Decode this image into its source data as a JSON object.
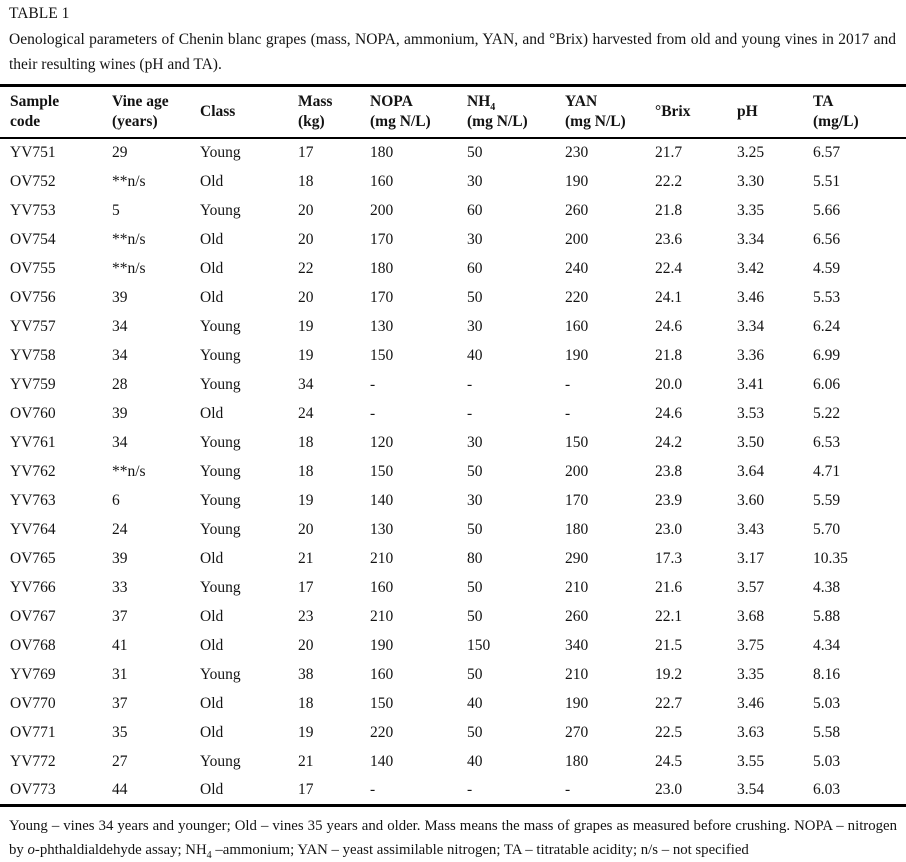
{
  "table_label": "TABLE 1",
  "caption": "Oenological parameters of Chenin blanc grapes (mass, NOPA, ammonium, YAN, and °Brix) harvested from old and young vines in 2017 and their resulting wines (pH and TA).",
  "table": {
    "columns": [
      {
        "line1": "Sample",
        "line2": "code"
      },
      {
        "line1": "Vine age",
        "line2": "(years)"
      },
      {
        "line1": "Class",
        "line2": ""
      },
      {
        "line1": "Mass",
        "line2": "(kg)"
      },
      {
        "line1": "NOPA",
        "line2": "(mg N/L)"
      },
      {
        "line1": "NH",
        "sub": "4",
        "line2": "(mg N/L)"
      },
      {
        "line1": "YAN",
        "line2": "(mg N/L)"
      },
      {
        "line1": "°Brix",
        "line2": ""
      },
      {
        "line1": "pH",
        "line2": ""
      },
      {
        "line1": "TA",
        "line2": "(mg/L)"
      }
    ],
    "rows": [
      [
        "YV751",
        "29",
        "Young",
        "17",
        "180",
        "50",
        "230",
        "21.7",
        "3.25",
        "6.57"
      ],
      [
        "OV752",
        "**n/s",
        "Old",
        "18",
        "160",
        "30",
        "190",
        "22.2",
        "3.30",
        "5.51"
      ],
      [
        "YV753",
        "5",
        "Young",
        "20",
        "200",
        "60",
        "260",
        "21.8",
        "3.35",
        "5.66"
      ],
      [
        "OV754",
        "**n/s",
        "Old",
        "20",
        "170",
        "30",
        "200",
        "23.6",
        "3.34",
        "6.56"
      ],
      [
        "OV755",
        "**n/s",
        "Old",
        "22",
        "180",
        "60",
        "240",
        "22.4",
        "3.42",
        "4.59"
      ],
      [
        "OV756",
        "39",
        "Old",
        "20",
        "170",
        "50",
        "220",
        "24.1",
        "3.46",
        "5.53"
      ],
      [
        "YV757",
        "34",
        "Young",
        "19",
        "130",
        "30",
        "160",
        "24.6",
        "3.34",
        "6.24"
      ],
      [
        "YV758",
        "34",
        "Young",
        "19",
        "150",
        "40",
        "190",
        "21.8",
        "3.36",
        "6.99"
      ],
      [
        "YV759",
        "28",
        "Young",
        "34",
        "-",
        "-",
        "-",
        "20.0",
        "3.41",
        "6.06"
      ],
      [
        "OV760",
        "39",
        "Old",
        "24",
        "-",
        "-",
        "-",
        "24.6",
        "3.53",
        "5.22"
      ],
      [
        "YV761",
        "34",
        "Young",
        "18",
        "120",
        "30",
        "150",
        "24.2",
        "3.50",
        "6.53"
      ],
      [
        "YV762",
        "**n/s",
        "Young",
        "18",
        "150",
        "50",
        "200",
        "23.8",
        "3.64",
        "4.71"
      ],
      [
        "YV763",
        "6",
        "Young",
        "19",
        "140",
        "30",
        "170",
        "23.9",
        "3.60",
        "5.59"
      ],
      [
        "YV764",
        "24",
        "Young",
        "20",
        "130",
        "50",
        "180",
        "23.0",
        "3.43",
        "5.70"
      ],
      [
        "OV765",
        "39",
        "Old",
        "21",
        "210",
        "80",
        "290",
        "17.3",
        "3.17",
        "10.35"
      ],
      [
        "YV766",
        "33",
        "Young",
        "17",
        "160",
        "50",
        "210",
        "21.6",
        "3.57",
        "4.38"
      ],
      [
        "OV767",
        "37",
        "Old",
        "23",
        "210",
        "50",
        "260",
        "22.1",
        "3.68",
        "5.88"
      ],
      [
        "OV768",
        "41",
        "Old",
        "20",
        "190",
        "150",
        "340",
        "21.5",
        "3.75",
        "4.34"
      ],
      [
        "YV769",
        "31",
        "Young",
        "38",
        "160",
        "50",
        "210",
        "19.2",
        "3.35",
        "8.16"
      ],
      [
        "OV770",
        "37",
        "Old",
        "18",
        "150",
        "40",
        "190",
        "22.7",
        "3.46",
        "5.03"
      ],
      [
        "OV771",
        "35",
        "Old",
        "19",
        "220",
        "50",
        "270",
        "22.5",
        "3.63",
        "5.58"
      ],
      [
        "YV772",
        "27",
        "Young",
        "21",
        "140",
        "40",
        "180",
        "24.5",
        "3.55",
        "5.03"
      ],
      [
        "OV773",
        "44",
        "Old",
        "17",
        "-",
        "-",
        "-",
        "23.0",
        "3.54",
        "6.03"
      ]
    ]
  },
  "footnote": {
    "part1": "Young – vines 34 years and younger; Old – vines 35 years and older. Mass means the mass of grapes as measured before crushing. NOPA – nitrogen by ",
    "italic_o": "o",
    "part2": "-phthaldialdehyde assay; NH",
    "sub_4": "4",
    "part3": " –ammonium; YAN – yeast assimilable nitrogen; TA – titratable acidity; n/s – not specified"
  }
}
